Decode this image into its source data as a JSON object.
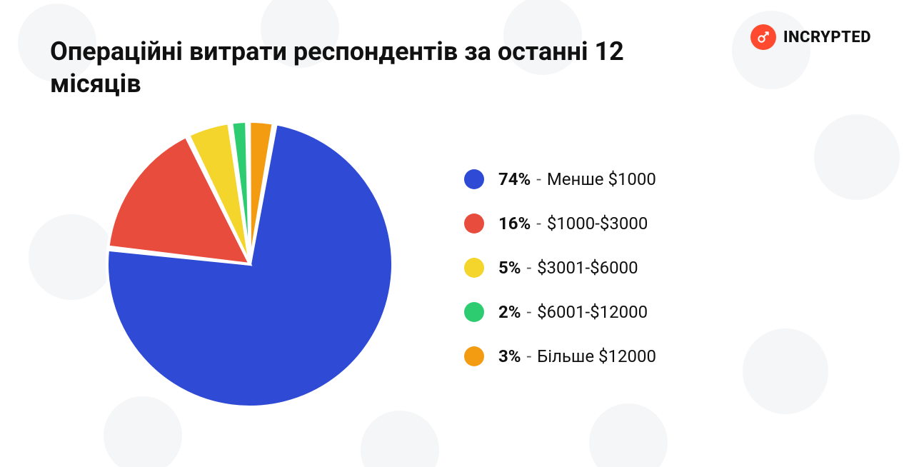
{
  "brand": {
    "name": "INCRYPTED",
    "icon_bg": "#ff4a2f",
    "icon_fg": "#ffffff"
  },
  "title": "Операційні витрати респондентів за останні 12 місяців",
  "chart": {
    "type": "pie",
    "background_color": "#ffffff",
    "slice_gap_deg": 1.2,
    "stroke": "#ffffff",
    "stroke_width": 4,
    "radius": 200,
    "start_angle_deg": -80,
    "direction": "clockwise",
    "slices": [
      {
        "value": 74,
        "color": "#2f4bd6",
        "label": "Менше $1000"
      },
      {
        "value": 16,
        "color": "#e84c3d",
        "label": "$1000-$3000"
      },
      {
        "value": 5,
        "color": "#f3d52b",
        "label": "$3001-$6000"
      },
      {
        "value": 2,
        "color": "#2ecc71",
        "label": "$6001-$12000"
      },
      {
        "value": 3,
        "color": "#f39c12",
        "label": "Більше $12000"
      }
    ]
  },
  "legend": {
    "dot_size": 28,
    "font_size": 24,
    "percent_suffix": "%",
    "separator": " - "
  },
  "background_pattern": {
    "icon_color": "#6b7280",
    "opacity": 0.06
  }
}
